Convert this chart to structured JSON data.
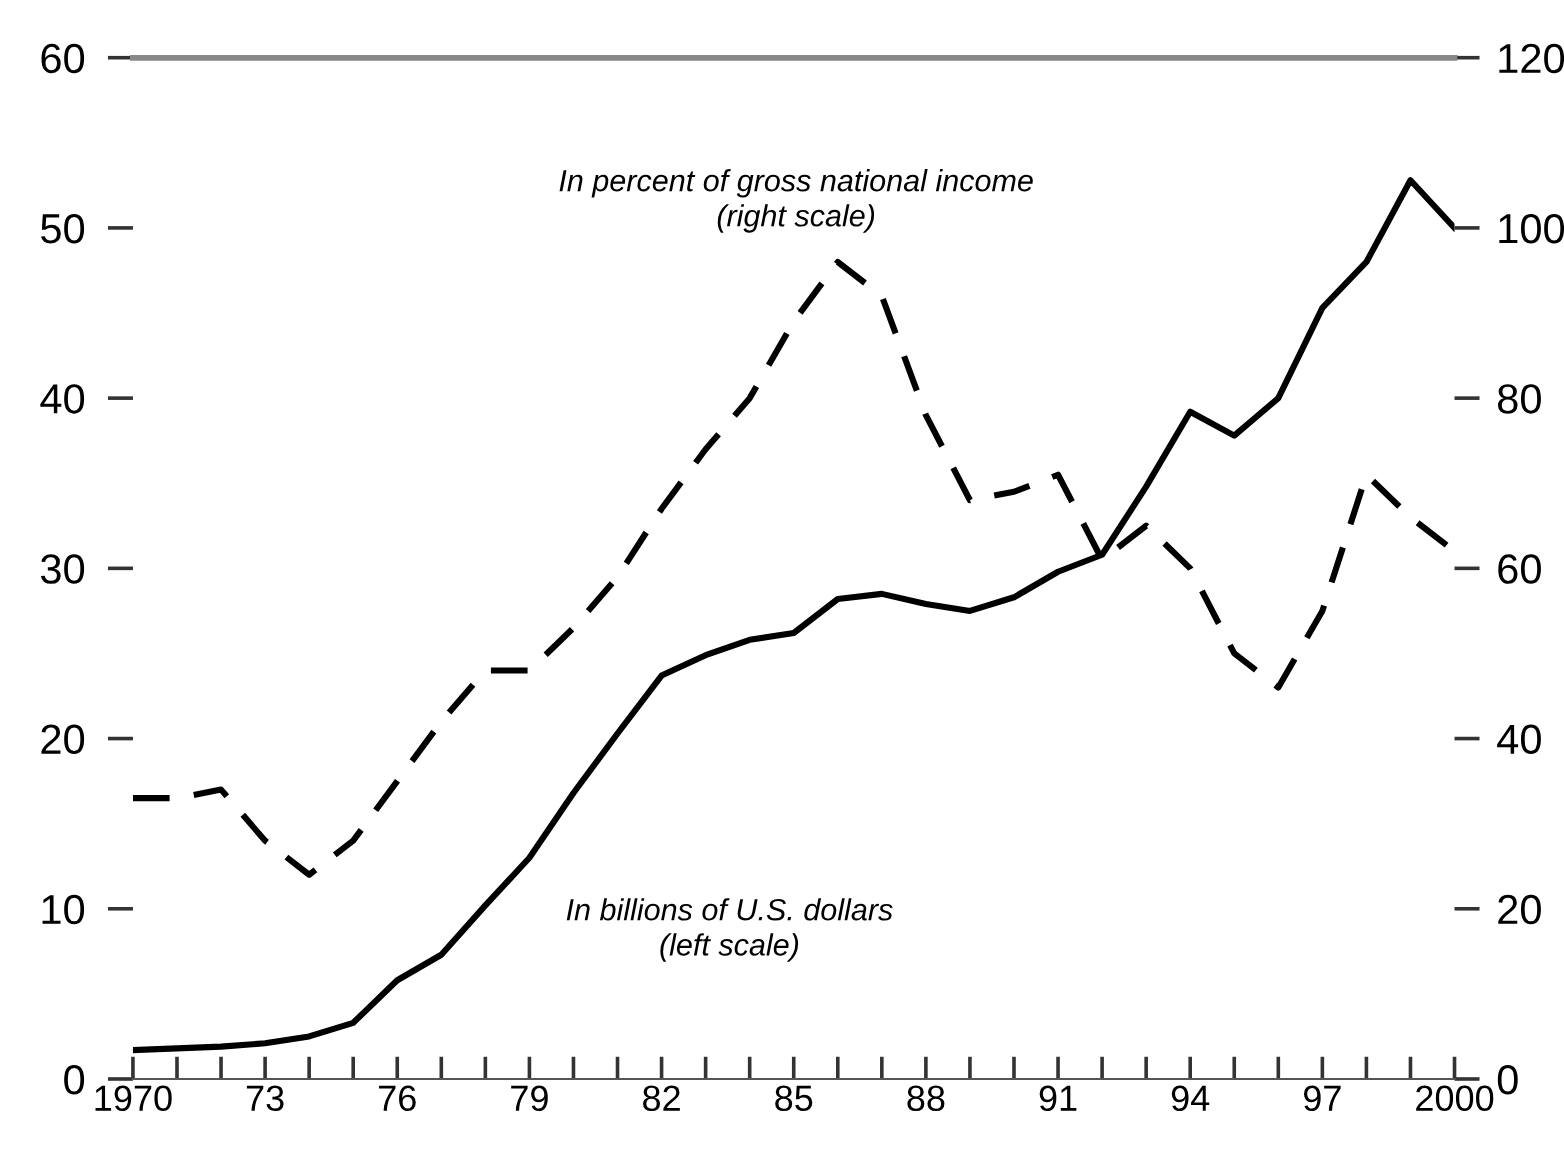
{
  "chart_data": {
    "type": "line",
    "x": [
      1970,
      1971,
      1972,
      1973,
      1974,
      1975,
      1976,
      1977,
      1978,
      1979,
      1980,
      1981,
      1982,
      1983,
      1984,
      1985,
      1986,
      1987,
      1988,
      1989,
      1990,
      1991,
      1992,
      1993,
      1994,
      1995,
      1996,
      1997,
      1998,
      1999,
      2000
    ],
    "series": [
      {
        "name": "In billions of U.S. dollars\n(left scale)",
        "color": "#000000",
        "line_style": "solid",
        "values": [
          1.7,
          1.8,
          1.9,
          2.1,
          2.5,
          3.3,
          5.8,
          7.3,
          10.2,
          13,
          16.8,
          20.3,
          23.7,
          24.9,
          25.8,
          26.2,
          28.2,
          28.5,
          27.9,
          27.5,
          28.3,
          29.8,
          30.8,
          34.8,
          39.2,
          37.8,
          40,
          45.3,
          48,
          52.8,
          50
        ]
      },
      {
        "name": "In percent of gross national income\n(right scale)",
        "color": "#000000",
        "line_style": "dashed",
        "axis": "y2",
        "values": [
          33,
          33,
          34,
          28,
          24,
          28,
          35,
          42,
          48,
          48,
          53,
          59,
          67,
          74,
          80,
          89,
          96,
          92,
          78,
          68,
          69,
          71,
          61,
          65,
          60,
          50,
          46,
          55,
          71,
          66,
          62
        ]
      }
    ],
    "xlim": [
      1970,
      2000
    ],
    "xticks": [
      1970,
      {
        "value": 1971,
        "label": null
      },
      {
        "value": 1972,
        "label": null
      },
      {
        "value": 1973,
        "label": "73"
      },
      {
        "value": 1974,
        "label": null
      },
      {
        "value": 1975,
        "label": null
      },
      {
        "value": 1976,
        "label": "76"
      },
      {
        "value": 1977,
        "label": null
      },
      {
        "value": 1978,
        "label": null
      },
      {
        "value": 1979,
        "label": "79"
      },
      {
        "value": 1980,
        "label": null
      },
      {
        "value": 1981,
        "label": null
      },
      {
        "value": 1982,
        "label": "82"
      },
      {
        "value": 1983,
        "label": null
      },
      {
        "value": 1984,
        "label": null
      },
      {
        "value": 1985,
        "label": "85"
      },
      {
        "value": 1986,
        "label": null
      },
      {
        "value": 1987,
        "label": null
      },
      {
        "value": 1988,
        "label": "88"
      },
      {
        "value": 1989,
        "label": null
      },
      {
        "value": 1990,
        "label": null
      },
      {
        "value": 1991,
        "label": "91"
      },
      {
        "value": 1992,
        "label": null
      },
      {
        "value": 1993,
        "label": null
      },
      {
        "value": 1994,
        "label": "94"
      },
      {
        "value": 1995,
        "label": null
      },
      {
        "value": 1996,
        "label": null
      },
      {
        "value": 1997,
        "label": "97"
      },
      {
        "value": 1998,
        "label": null
      },
      {
        "value": 1999,
        "label": null
      },
      2000
    ],
    "ylim": [
      0,
      60
    ],
    "yticks": [
      0,
      10,
      20,
      30,
      40,
      50,
      60
    ],
    "y2lim": [
      0,
      120
    ],
    "y2ticks": [
      0,
      20,
      40,
      60,
      80,
      100,
      120
    ],
    "grid": false,
    "legend": false
  }
}
